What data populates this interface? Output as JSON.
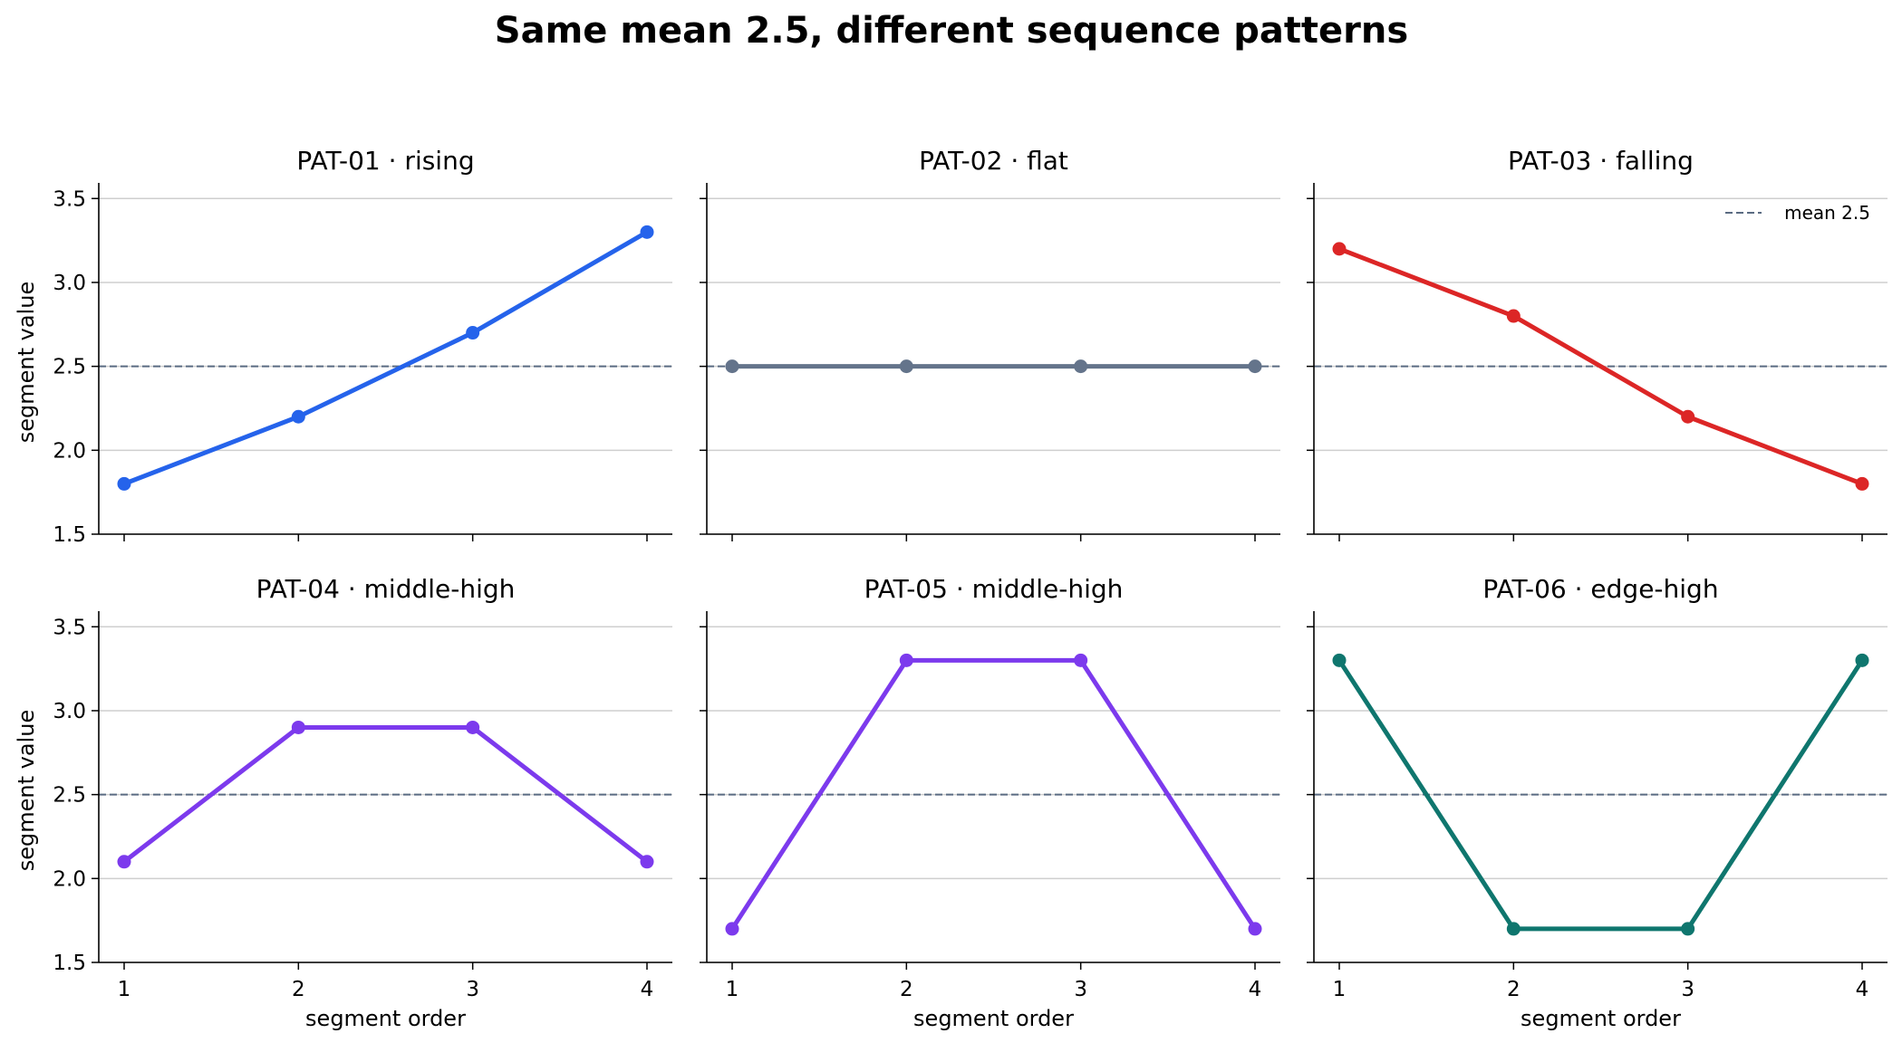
{
  "chart_data": {
    "type": "line",
    "title": "Same mean 2.5, different sequence patterns",
    "xlabel": "segment order",
    "ylabel": "segment value",
    "x": [
      1,
      2,
      3,
      4
    ],
    "x_ticks": [
      "1",
      "2",
      "3",
      "4"
    ],
    "y_ticks": [
      "1.5",
      "2.0",
      "2.5",
      "3.0",
      "3.5"
    ],
    "ylim": [
      1.5,
      3.55
    ],
    "grid": "horizontal",
    "reference_line": {
      "y": 2.5,
      "label": "mean 2.5",
      "color": "#5a6b82",
      "style": "dashed"
    },
    "legend_position": "top-right",
    "panels": [
      {
        "title": "PAT-01 · rising",
        "color": "#2563eb",
        "values": [
          1.8,
          2.2,
          2.7,
          3.3
        ]
      },
      {
        "title": "PAT-02 · flat",
        "color": "#64748b",
        "values": [
          2.5,
          2.5,
          2.5,
          2.5
        ]
      },
      {
        "title": "PAT-03 · falling",
        "color": "#dc2626",
        "values": [
          3.2,
          2.8,
          2.2,
          1.8
        ]
      },
      {
        "title": "PAT-04 · middle-high",
        "color": "#7c3aed",
        "values": [
          2.1,
          2.9,
          2.9,
          2.1
        ]
      },
      {
        "title": "PAT-05 · middle-high",
        "color": "#7c3aed",
        "values": [
          1.7,
          3.3,
          3.3,
          1.7
        ]
      },
      {
        "title": "PAT-06 · edge-high",
        "color": "#0f766e",
        "values": [
          3.3,
          1.7,
          1.7,
          3.3
        ]
      }
    ]
  }
}
